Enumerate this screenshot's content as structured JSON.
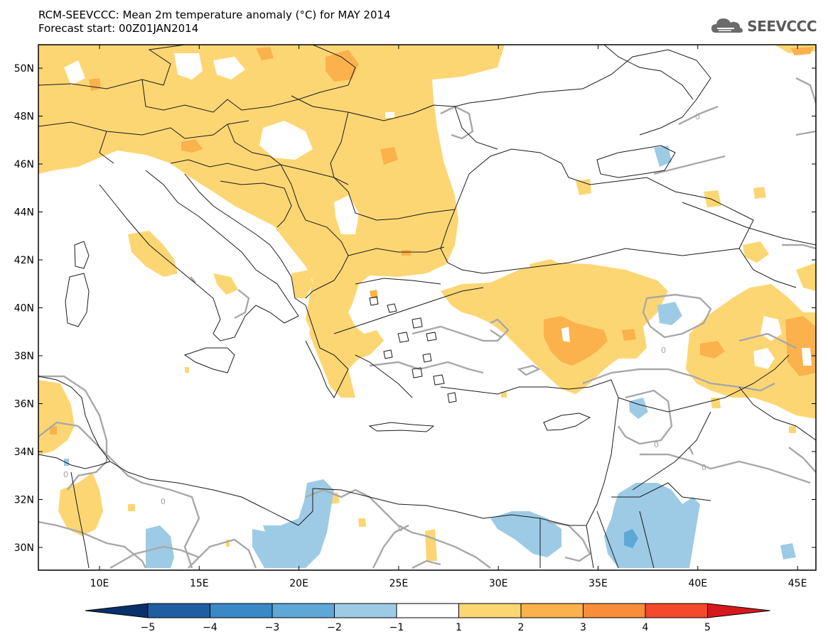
{
  "header": {
    "title_line1": "RCM-SEEVCCC: Mean 2m temperature anomaly (°C) for MAY 2014",
    "title_line2": "Forecast start: 00Z01JAN2014",
    "logo_text": "SEEVCCC"
  },
  "map": {
    "lat_labels": [
      "50N",
      "48N",
      "46N",
      "44N",
      "42N",
      "40N",
      "38N",
      "36N",
      "34N",
      "32N",
      "30N"
    ],
    "lon_labels": [
      "10E",
      "15E",
      "20E",
      "25E",
      "30E",
      "35E",
      "40E",
      "45E"
    ],
    "contour_label": "0"
  },
  "colorbar": {
    "ticks": [
      "−5",
      "−4",
      "−3",
      "−2",
      "−1",
      "1",
      "2",
      "3",
      "4",
      "5"
    ],
    "colors": {
      "lt_-5": "#08306b",
      "-5_-4": "#1f5fa1",
      "-4_-3": "#3a88c6",
      "-3_-2": "#5ea8d8",
      "-2_-1": "#9dcbe6",
      "-1_1": "#ffffff",
      "1_2": "#fdd674",
      "2_3": "#fbb24c",
      "3_4": "#f98d3a",
      "4_5": "#f4492a",
      "gt_5": "#d7191c"
    }
  }
}
